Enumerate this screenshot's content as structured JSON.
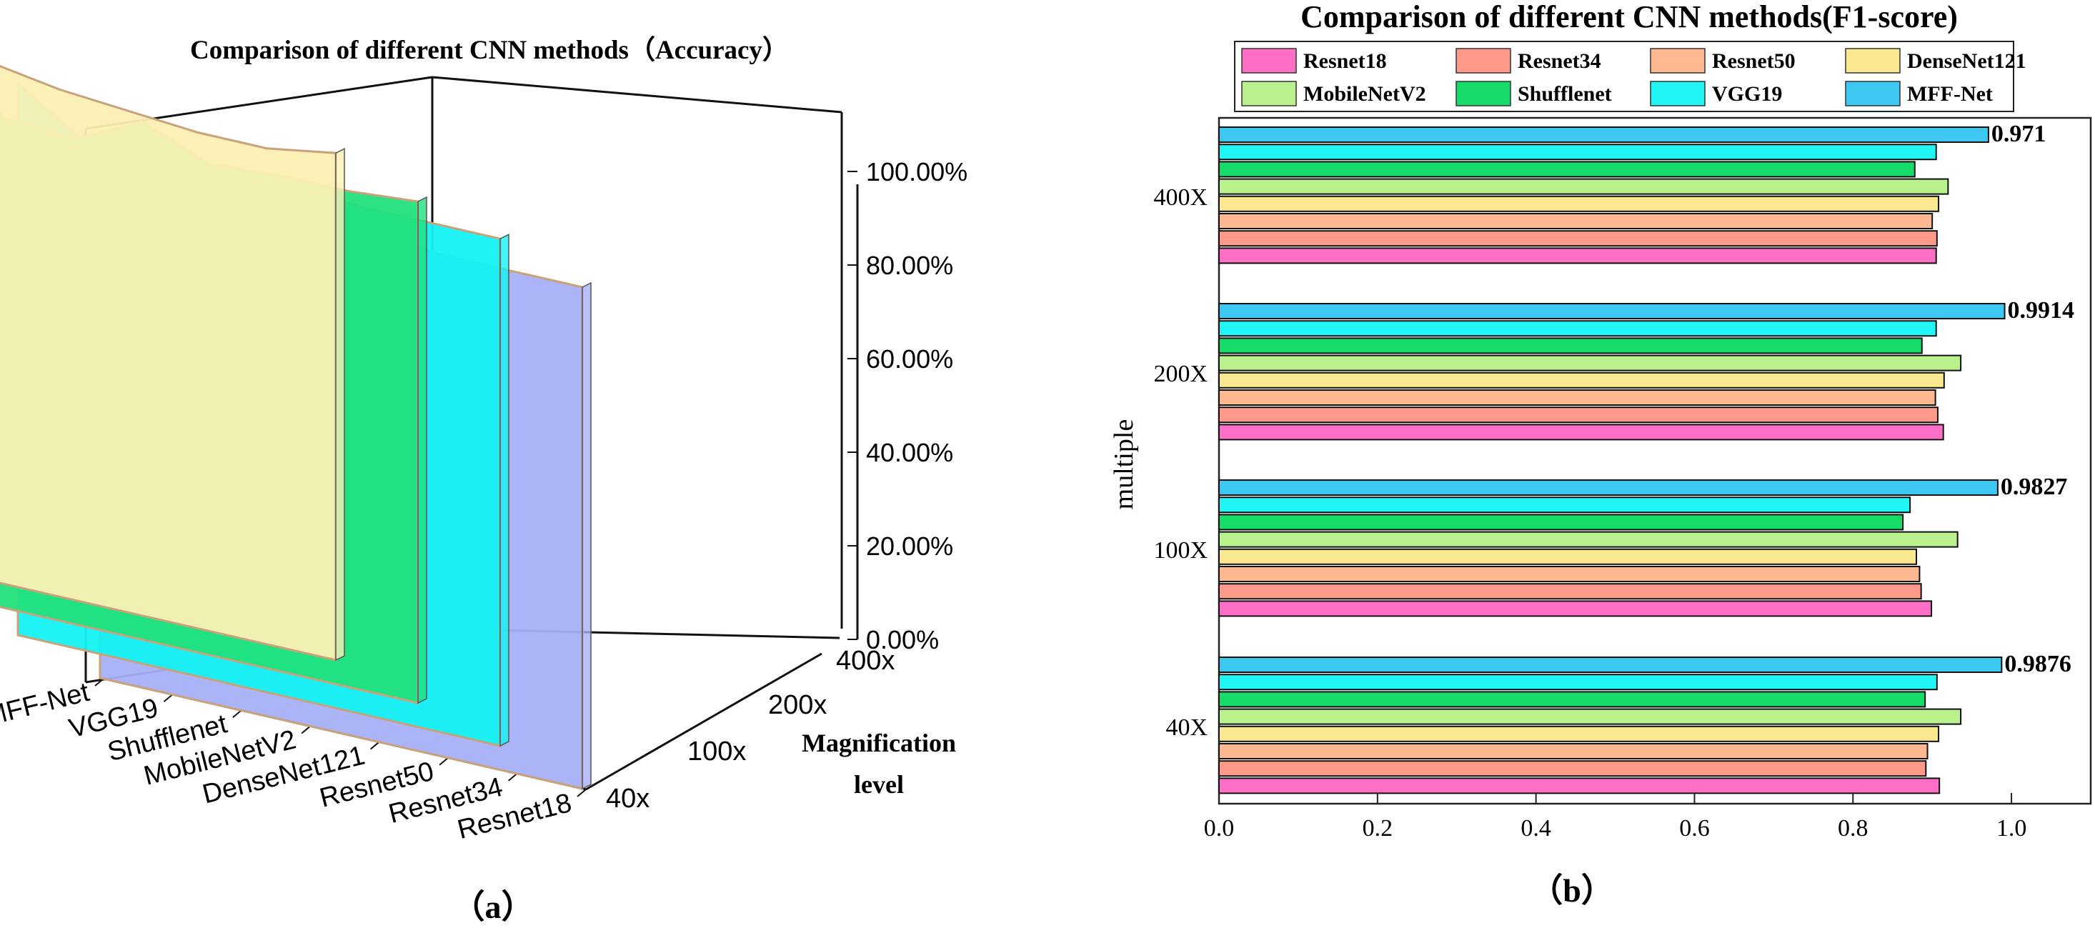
{
  "panel_a": {
    "caption": "（a）",
    "chart_data": {
      "type": "area",
      "title": "Comparison of different CNN methods（Accuracy）",
      "zlabel_line1": "Magnification",
      "zlabel_line2": "level",
      "ticks": [
        "0.00%",
        "20.00%",
        "40.00%",
        "60.00%",
        "80.00%",
        "100.00%"
      ],
      "ylim": [
        0,
        100
      ],
      "x": [
        "MFF-Net",
        "VGG19",
        "Shufflenet",
        "MobileNetV2",
        "DenseNet121",
        "Resnet50",
        "Resnet34",
        "Resnet18"
      ],
      "series": [
        {
          "name": "40x",
          "color": "#fbf0b4",
          "values": [
            98,
            88,
            93,
            91,
            90,
            89,
            89,
            91
          ]
        },
        {
          "name": "100x",
          "color": "#22e07c",
          "values": [
            98,
            88,
            87,
            93,
            88,
            89,
            89,
            90
          ]
        },
        {
          "name": "200x",
          "color": "#14f2f2",
          "values": [
            99,
            91,
            89,
            93,
            92,
            91,
            91,
            91
          ]
        },
        {
          "name": "400x",
          "color": "#a8b0f8",
          "values": [
            97,
            91,
            88,
            92,
            91,
            90,
            90,
            90
          ]
        }
      ]
    }
  },
  "panel_b": {
    "caption": "（b）",
    "chart_data": {
      "type": "bar",
      "orientation": "horizontal",
      "title": "Comparison of different CNN methods(F1-score)",
      "ylabel": "multiple",
      "categories": [
        "40X",
        "100X",
        "200X",
        "400X"
      ],
      "xlim": [
        0,
        1.1
      ],
      "xticks": [
        "0.0",
        "0.2",
        "0.4",
        "0.6",
        "0.8",
        "1.0"
      ],
      "legend_position": "top",
      "series": [
        {
          "name": "Resnet18",
          "color": "#ff6ec7",
          "values": [
            0.909,
            0.899,
            0.914,
            0.905
          ]
        },
        {
          "name": "Resnet34",
          "color": "#ff9a8a",
          "values": [
            0.892,
            0.886,
            0.907,
            0.906
          ]
        },
        {
          "name": "Resnet50",
          "color": "#ffb890",
          "values": [
            0.894,
            0.884,
            0.904,
            0.9
          ]
        },
        {
          "name": "DenseNet121",
          "color": "#f9e890",
          "values": [
            0.908,
            0.88,
            0.915,
            0.908
          ]
        },
        {
          "name": "MobileNetV2",
          "color": "#b9f28c",
          "values": [
            0.936,
            0.932,
            0.936,
            0.92
          ]
        },
        {
          "name": "Shufflenet",
          "color": "#18dc6a",
          "values": [
            0.891,
            0.863,
            0.887,
            0.878
          ]
        },
        {
          "name": "VGG19",
          "color": "#22f5f5",
          "values": [
            0.906,
            0.872,
            0.905,
            0.905
          ]
        },
        {
          "name": "MFF-Net",
          "color": "#3cc8f0",
          "values": [
            0.9876,
            0.9827,
            0.9914,
            0.971
          ]
        }
      ],
      "data_labels": [
        "0.9876",
        "0.9827",
        "0.9914",
        "0.971"
      ]
    }
  }
}
